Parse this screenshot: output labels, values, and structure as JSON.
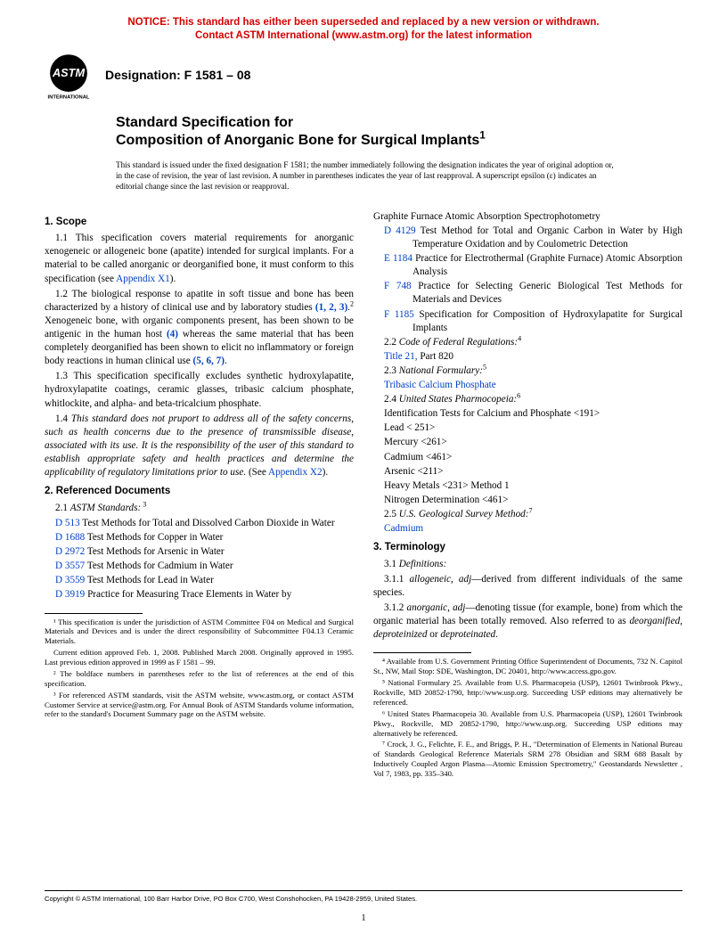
{
  "notice": {
    "line1": "NOTICE: This standard has either been superseded and replaced by a new version or withdrawn.",
    "line2": "Contact ASTM International (www.astm.org) for the latest information"
  },
  "logo": {
    "text_top": "ASTM",
    "text_bottom": "INTERNATIONAL"
  },
  "designation_label": "Designation: F 1581 – 08",
  "title": {
    "line1": "Standard Specification for",
    "line2": "Composition of Anorganic Bone for Surgical Implants",
    "sup": "1"
  },
  "issue_note": "This standard is issued under the fixed designation F 1581; the number immediately following the designation indicates the year of original adoption or, in the case of revision, the year of last revision. A number in parentheses indicates the year of last reapproval. A superscript epsilon (ε) indicates an editorial change since the last revision or reapproval.",
  "sec1_head": "1. Scope",
  "p1_1a": "1.1 This specification covers material requirements for anorganic xenogeneic or allogeneic bone (apatite) intended for surgical implants. For a material to be called anorganic or deorganified bone, it must conform to this specification (see ",
  "p1_1_link": "Appendix X1",
  "p1_1b": ").",
  "p1_2a": "1.2 The biological response to apatite in soft tissue and bone has been characterized by a history of clinical use and by laboratory studies ",
  "p1_2_refs": "(1, 2, 3)",
  "p1_2b": ".",
  "p1_2_sup": "2",
  "p1_2c": " Xenogeneic bone, with organic components present, has been shown to be antigenic in the human host ",
  "p1_2_ref4": "(4)",
  "p1_2d": " whereas the same material that has been completely deorganified has been shown to elicit no inflammatory or foreign body reactions in human clinical use ",
  "p1_2_ref567": "(5, 6, 7)",
  "p1_2e": ".",
  "p1_3": "1.3 This specification specifically excludes synthetic hydroxylapatite, hydroxylapatite coatings, ceramic glasses, tribasic calcium phosphate, whitlockite, and alpha- and beta-tricalcium phosphate.",
  "p1_4a": "1.4 ",
  "p1_4_ital": "This standard does not pruport to address all of the safety concerns, such as health concerns due to the presence of transmissible disease, associated with its use. It is the responsibility of the user of this standard to establish appropriate safety and health practices and determine the applicability of regulatory limitations prior to use.",
  "p1_4b": " (See ",
  "p1_4_link": "Appendix X2",
  "p1_4c": ").",
  "sec2_head": "2. Referenced Documents",
  "p2_1a": "2.1 ",
  "p2_1_ital": "ASTM Standards:",
  "p2_1_sup": " 3",
  "astm_refs": [
    {
      "code": "D 513",
      "text": " Test Methods for Total and Dissolved Carbon Dioxide in Water"
    },
    {
      "code": "D 1688",
      "text": " Test Methods for Copper in Water"
    },
    {
      "code": "D 2972",
      "text": " Test Methods for Arsenic in Water"
    },
    {
      "code": "D 3557",
      "text": " Test Methods for Cadmium in Water"
    },
    {
      "code": "D 3559",
      "text": " Test Methods for Lead in Water"
    },
    {
      "code": "D 3919",
      "text": " Practice for Measuring Trace Elements in Water by"
    }
  ],
  "col2_cont": "Graphite Furnace Atomic Absorption Spectrophotometry",
  "astm_refs2": [
    {
      "code": "D 4129",
      "text": " Test Method for Total and Organic Carbon in Water by High Temperature Oxidation and by Coulometric Detection"
    },
    {
      "code": "E 1184",
      "text": " Practice for Electrothermal (Graphite Furnace) Atomic Absorption Analysis"
    },
    {
      "code": "F 748",
      "text": " Practice for Selecting Generic Biological Test Methods for Materials and Devices"
    },
    {
      "code": "F 1185",
      "text": " Specification for Composition of Hydroxylapatite for Surgical Implants"
    }
  ],
  "p2_2a": "2.2  ",
  "p2_2_ital": "Code of Federal Regulations:",
  "p2_2_sup": "4",
  "p2_2_link": "Title 21,",
  "p2_2_rest": "  Part 820",
  "p2_3a": "2.3  ",
  "p2_3_ital": "National Formulary:",
  "p2_3_sup": "5",
  "p2_3_link": "Tribasic Calcium Phosphate",
  "p2_4a": "2.4  ",
  "p2_4_ital": "United States Pharmocopeia:",
  "p2_4_sup": "6",
  "usp_items": [
    "Identification Tests for Calcium and Phosphate <191>",
    "Lead < 251>",
    "Mercury <261>",
    "Cadmium <461>",
    "Arsenic <211>",
    "Heavy Metals <231>  Method 1",
    "Nitrogen Determination <461>"
  ],
  "p2_5a": "2.5  ",
  "p2_5_ital": "U.S. Geological Survey Method:",
  "p2_5_sup": "7",
  "p2_5_link": "Cadmium",
  "sec3_head": "3. Terminology",
  "p3_1": "3.1 ",
  "p3_1_ital": "Definitions:",
  "p3_1_1a": "3.1.1 ",
  "p3_1_1_term": "allogeneic",
  "p3_1_1_adj": ", adj",
  "p3_1_1_def": "—derived from different individuals of the same species.",
  "p3_1_2a": "3.1.2 ",
  "p3_1_2_term": "anorganic",
  "p3_1_2_adj": ", adj",
  "p3_1_2_def1": "—denoting tissue (for example, bone) from which the organic material has been totally removed. Also referred to as ",
  "p3_1_2_ital": "deorganified, deproteinized",
  "p3_1_2_def2": " or ",
  "p3_1_2_ital2": "deproteinated",
  "p3_1_2_def3": ".",
  "footnotes_left": [
    "¹ This specification is under the jurisdiction of ASTM Committee F04 on Medical and Surgical Materials and Devices and is under the direct responsibility of Subcommittee F04.13 Ceramic Materials.",
    "Current edition approved Feb. 1, 2008. Published March 2008. Originally approved in 1995. Last previous edition approved in 1999 as F 1581 – 99.",
    "² The boldface numbers in parentheses refer to the list of references at the end of this specification.",
    "³ For referenced ASTM standards, visit the ASTM website, www.astm.org, or contact ASTM Customer Service at service@astm.org. For Annual Book of ASTM Standards volume information, refer to the standard's Document Summary page on the ASTM website."
  ],
  "footnotes_right": [
    "⁴ Available from U.S. Government Printing Office Superintendent of Documents, 732 N. Capitol St., NW, Mail Stop: SDE, Washington, DC 20401, http://www.access.gpo.gov.",
    "⁵ National Formulary 25. Available from U.S. Pharmacopeia (USP), 12601 Twinbrook Pkwy., Rockville, MD 20852-1790, http://www.usp.org. Succeeding USP editions may alternatively be referenced.",
    "⁶ United States Pharmacopeia 30. Available from U.S. Pharmacopeia (USP), 12601 Twinbrook Pkwy., Rockville, MD 20852-1790, http://www.usp.org. Succeeding USP editions may alternatively be referenced.",
    "⁷ Crock, J. G., Felichte, F. E., and Briggs, P. H., \"Determination of Elements in National Bureau of Standards Geological Reference Materials SRM 278 Obsidian and SRM 688 Basalt by Inductively Coupled Argon Plasma—Atomic Emission Spectrometry,\" Geostandards Newsletter , Vol 7, 1983, pp. 335–340."
  ],
  "copyright": "Copyright © ASTM International, 100 Barr Harbor Drive, PO Box C700, West Conshohocken, PA 19428-2959, United States.",
  "page_num": "1",
  "colors": {
    "link": "#0040c0",
    "notice": "#d40000",
    "text": "#000000",
    "bg": "#ffffff"
  }
}
